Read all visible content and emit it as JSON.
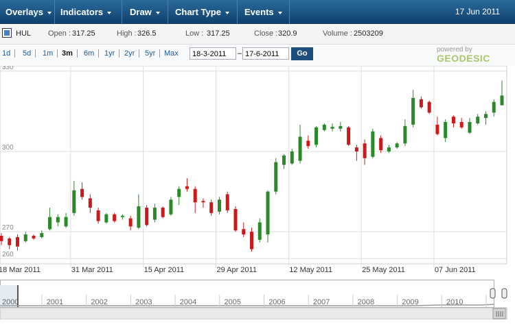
{
  "toolbar": {
    "menus": [
      "Overlays",
      "Indicators",
      "Draw",
      "Chart Type",
      "Events"
    ],
    "date": "17 Jun 2011"
  },
  "quote": {
    "symbol": "HUL",
    "fields": [
      {
        "label": "Open :",
        "value": 317.25
      },
      {
        "label": "High :",
        "value": 326.5
      },
      {
        "label": "Low :",
        "value": 317.25
      },
      {
        "label": "Close :",
        "value": 320.9
      },
      {
        "label": "Volume :",
        "value": 2503209
      }
    ]
  },
  "ranges": {
    "buttons": [
      "1d",
      "5d",
      "1m",
      "3m",
      "6m",
      "1yr",
      "2yr",
      "5yr",
      "Max"
    ],
    "active": 3,
    "from": "18-3-2011",
    "separator": "–",
    "to": "17-6-2011",
    "go": "Go",
    "powered_by": "powered by",
    "brand": "GEODESIC"
  },
  "chart_data": {
    "type": "candlestick",
    "categories": [
      "18 Mar 2011",
      null,
      null,
      null,
      null,
      null,
      null,
      null,
      null,
      "31 Mar 2011",
      null,
      null,
      null,
      null,
      null,
      null,
      null,
      null,
      "15 Apr 2011",
      null,
      null,
      null,
      null,
      null,
      null,
      null,
      null,
      "29 Apr 2011",
      null,
      null,
      null,
      null,
      null,
      null,
      null,
      null,
      "12 May 2011",
      null,
      null,
      null,
      null,
      null,
      null,
      null,
      null,
      "25 May 2011",
      null,
      null,
      null,
      null,
      null,
      null,
      null,
      null,
      "07 Jun 2011",
      null,
      null,
      null,
      null,
      null,
      null,
      null,
      null
    ],
    "open": [
      268.5,
      267.5,
      268,
      266.5,
      268.5,
      268,
      271,
      273.5,
      272,
      277,
      286,
      282.5,
      278,
      273.5,
      276.5,
      275.5,
      275,
      271.5,
      279,
      274.5,
      279,
      276.5,
      283,
      287,
      286,
      281.5,
      281,
      277.5,
      284,
      278.5,
      271,
      270,
      267,
      269,
      285,
      295,
      295.5,
      296.5,
      304,
      302.5,
      308,
      308.5,
      308.5,
      309,
      301.5,
      303,
      298,
      305,
      300,
      301.5,
      303,
      310,
      319.5,
      318.5,
      310,
      305,
      313,
      311,
      307,
      310.5,
      312.5,
      314.5,
      317.25
    ],
    "high": [
      269.5,
      268,
      269,
      270,
      269,
      270.5,
      279,
      276.5,
      277,
      289,
      288.5,
      284,
      279,
      277,
      277,
      276.5,
      276,
      284,
      280,
      280.5,
      279.5,
      283,
      287,
      290,
      287,
      282.5,
      282,
      283,
      285,
      279.5,
      273.5,
      271.5,
      275,
      285.5,
      297.5,
      299,
      301,
      310,
      306,
      309.5,
      310.5,
      310.5,
      311,
      309.5,
      302.5,
      304.5,
      308.5,
      306,
      302.5,
      303.5,
      312,
      323,
      320.5,
      319,
      313,
      312,
      313.5,
      312.5,
      312.5,
      314,
      315,
      319.5,
      326.5
    ],
    "low": [
      265,
      263.5,
      263,
      266,
      267,
      267.5,
      270.5,
      272,
      271.5,
      276,
      282,
      277,
      273,
      273,
      273.5,
      274.5,
      270.5,
      271,
      272,
      273.5,
      275,
      276,
      280,
      285,
      277,
      279,
      276,
      276.5,
      277,
      270,
      268,
      262.5,
      266,
      266,
      284,
      293.5,
      295,
      295.5,
      301,
      301.5,
      307.5,
      307.5,
      307.5,
      302,
      296.5,
      295,
      297.5,
      299.5,
      299.5,
      301,
      302,
      309,
      316,
      314,
      306,
      303.5,
      309,
      308.5,
      306.5,
      310,
      310,
      313,
      317.25
    ],
    "close": [
      266.5,
      265,
      264.5,
      269,
      267.5,
      269.5,
      275.5,
      275.5,
      275.5,
      285.5,
      283,
      279,
      274,
      276.5,
      274,
      276,
      272,
      279.5,
      272.5,
      279,
      275.5,
      282,
      286,
      286,
      281,
      281,
      277,
      282,
      278,
      270.5,
      269,
      263.5,
      273.5,
      285,
      296,
      298.5,
      300,
      305.5,
      302,
      309,
      310,
      309.2,
      309.5,
      302.5,
      300,
      297.5,
      307.5,
      300.5,
      301.5,
      303,
      309.5,
      320,
      316.5,
      314.5,
      306.5,
      311,
      310.5,
      309,
      311,
      313,
      314,
      318.5,
      320.9
    ],
    "up_color": "#2a8a2a",
    "down_color": "#cc1a1a",
    "ylim": [
      258,
      332
    ],
    "yticks": [
      260,
      270,
      300,
      330
    ],
    "grid": true
  },
  "navigator": {
    "years": [
      "2000",
      "2001",
      "2002",
      "2003",
      "2004",
      "2005",
      "2006",
      "2007",
      "2008",
      "2009",
      "2010"
    ]
  }
}
